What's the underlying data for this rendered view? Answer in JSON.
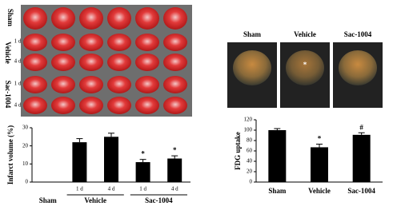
{
  "figure": {
    "brain_rows": {
      "sham": "Sham",
      "vehicle": "Vehicle",
      "sac": "Sac-1004",
      "day1": "1 d",
      "day4": "4 d"
    },
    "pet_labels": [
      "Sham",
      "Vehicle",
      "Sac-1004"
    ],
    "pet_mark": "*"
  },
  "chart_data": [
    {
      "type": "bar",
      "y_label": "Infarct volume (%)",
      "ylim": [
        0,
        30
      ],
      "yticks": [
        0,
        10,
        20,
        30
      ],
      "color": "#000000",
      "groups": [
        {
          "name": "Sham",
          "categories": [],
          "values": [],
          "errors": [],
          "annotations": []
        },
        {
          "name": "Vehicle",
          "categories": [
            "1 d",
            "4 d"
          ],
          "values": [
            22,
            25
          ],
          "errors": [
            2,
            2
          ],
          "annotations": [
            null,
            null
          ]
        },
        {
          "name": "Sac-1004",
          "categories": [
            "1 d",
            "4 d"
          ],
          "values": [
            11,
            13
          ],
          "errors": [
            1.5,
            1.5
          ],
          "annotations": [
            "*",
            "*"
          ]
        }
      ]
    },
    {
      "type": "bar",
      "y_label": "FDG uptake",
      "ylim": [
        0,
        120
      ],
      "yticks": [
        0,
        20,
        40,
        60,
        80,
        100,
        120
      ],
      "color": "#000000",
      "groups": [
        {
          "name": null,
          "categories": [
            "Sham",
            "Vehicle",
            "Sac-1004"
          ],
          "values": [
            100,
            67,
            91
          ],
          "errors": [
            3,
            6,
            4
          ],
          "annotations": [
            null,
            "*",
            "#"
          ]
        }
      ]
    }
  ]
}
